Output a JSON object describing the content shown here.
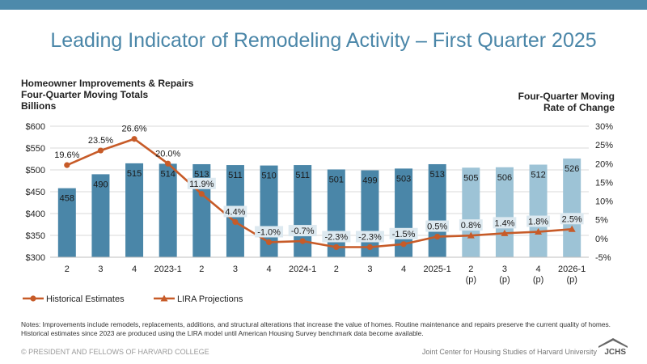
{
  "header": {
    "title": "Leading Indicator of Remodeling Activity – First Quarter 2025",
    "left_axis_title": [
      "Homeowner Improvements & Repairs",
      "Four-Quarter Moving Totals",
      "Billions"
    ],
    "right_axis_title": [
      "Four-Quarter Moving",
      "Rate of Change"
    ]
  },
  "chart_data": {
    "type": "bar",
    "categories": [
      "2",
      "3",
      "4",
      "2023-1",
      "2",
      "3",
      "4",
      "2024-1",
      "2",
      "3",
      "4",
      "2025-1",
      "2\n(p)",
      "3\n(p)",
      "4\n(p)",
      "2026-1\n(p)"
    ],
    "values": [
      458,
      490,
      515,
      514,
      513,
      511,
      510,
      511,
      501,
      499,
      503,
      513,
      505,
      506,
      512,
      526
    ],
    "bar_labels": [
      "458",
      "490",
      "515",
      "514",
      "513",
      "511",
      "510",
      "511",
      "501",
      "499",
      "503",
      "513",
      "505",
      "506",
      "512",
      "526"
    ],
    "ylim": [
      300,
      600
    ],
    "y_ticks": [
      "$300",
      "$350",
      "$400",
      "$450",
      "$500",
      "$550",
      "$600"
    ],
    "y2lim": [
      -5,
      30
    ],
    "y2_ticks": [
      "-5%",
      "0%",
      "5%",
      "10%",
      "15%",
      "20%",
      "25%",
      "30%"
    ],
    "series": [
      {
        "name": "Historical Estimates",
        "values": [
          19.6,
          23.5,
          26.6,
          20.0,
          11.9,
          4.4,
          -1.0,
          -0.7,
          -2.3,
          -2.3,
          -1.5,
          0.5,
          null,
          null,
          null,
          null
        ]
      },
      {
        "name": "LIRA Projections",
        "values": [
          null,
          null,
          null,
          null,
          null,
          null,
          null,
          null,
          null,
          null,
          null,
          0.5,
          0.8,
          1.4,
          1.8,
          2.5
        ]
      }
    ],
    "point_labels": [
      "19.6%",
      "23.5%",
      "26.6%",
      "20.0%",
      "11.9%",
      "4.4%",
      "-1.0%",
      "-0.7%",
      "-2.3%",
      "-2.3%",
      "-1.5%",
      "0.5%",
      "0.8%",
      "1.4%",
      "1.8%",
      "2.5%"
    ],
    "colors": {
      "bar_historical": "#4a86a8",
      "bar_projection": "#9dc3d6",
      "line": "#c75b28",
      "label_bg": "#dde9f0"
    },
    "projection_start_index": 12,
    "legend": {
      "entries": [
        "Historical Estimates",
        "LIRA Projections"
      ],
      "position": "bottom-left"
    }
  },
  "notes": "Notes: Improvements include remodels, replacements, additions, and structural alterations that increase the value of homes. Routine maintenance and repairs preserve the current quality of homes. Historical estimates since 2023 are produced using the LIRA model until American Housing Survey benchmark data become available.",
  "footer": {
    "copyright": "© PRESIDENT AND FELLOWS OF HARVARD COLLEGE",
    "org": "Joint Center for Housing Studies of Harvard University",
    "logo_text": "JCHS"
  }
}
